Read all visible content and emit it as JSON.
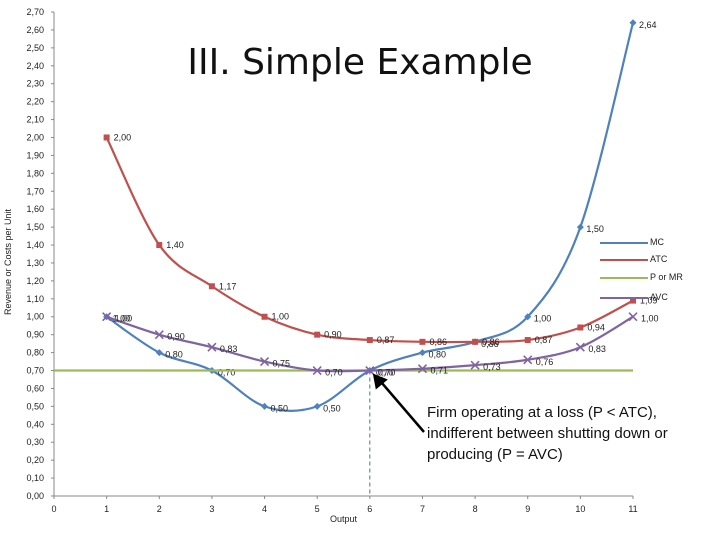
{
  "slide": {
    "title": "III. Simple Example",
    "annotation": "Firm operating at a loss (P < ATC), indifferent between shutting down or producing (P = AVC)"
  },
  "chart_data": {
    "type": "line",
    "xlabel": "Output",
    "ylabel": "Revenue or Costs per Unit",
    "xlim": [
      0,
      11
    ],
    "ylim": [
      0,
      2.7
    ],
    "x_ticks": [
      "0",
      "1",
      "2",
      "3",
      "4",
      "5",
      "6",
      "7",
      "8",
      "9",
      "10",
      "11"
    ],
    "y_ticks": [
      "0,00",
      "0,10",
      "0,20",
      "0,30",
      "0,40",
      "0,50",
      "0,60",
      "0,70",
      "0,80",
      "0,90",
      "1,00",
      "1,10",
      "1,20",
      "1,30",
      "1,40",
      "1,50",
      "1,60",
      "1,70",
      "1,80",
      "1,90",
      "2,00",
      "2,10",
      "2,20",
      "2,30",
      "2,40",
      "2,50",
      "2,60",
      "2,70"
    ],
    "grid": false,
    "legend_position": "right",
    "series": [
      {
        "name": "MC",
        "color": "#4f81bd",
        "marker": "diamond",
        "x": [
          1,
          2,
          3,
          4,
          5,
          6,
          7,
          8,
          9,
          10,
          11
        ],
        "values": [
          1.0,
          0.8,
          0.7,
          0.5,
          0.5,
          0.7,
          0.8,
          0.86,
          1.0,
          1.5,
          2.64
        ],
        "labels": [
          "1,00",
          "0,80",
          "0,70",
          "0,50",
          "0,50",
          "0,70",
          "0,80",
          "0,86",
          "1,00",
          "1,50",
          "2,64"
        ]
      },
      {
        "name": "ATC",
        "color": "#c0504d",
        "marker": "square",
        "x": [
          1,
          2,
          3,
          4,
          5,
          6,
          7,
          8,
          9,
          10,
          11
        ],
        "values": [
          2.0,
          1.4,
          1.17,
          1.0,
          0.9,
          0.87,
          0.86,
          0.86,
          0.87,
          0.94,
          1.09
        ],
        "labels": [
          "2,00",
          "1,40",
          "1,17",
          "1,00",
          "0,90",
          "0,87",
          "0,86",
          "0,86",
          "0,87",
          "0,94",
          "1,09"
        ]
      },
      {
        "name": "P or MR",
        "color": "#9bbb59",
        "marker": "none",
        "x": [
          0,
          11
        ],
        "values": [
          0.7,
          0.7
        ],
        "labels": []
      },
      {
        "name": "AVC",
        "color": "#8064a2",
        "marker": "x",
        "x": [
          1,
          2,
          3,
          4,
          5,
          6,
          7,
          8,
          9,
          10,
          11
        ],
        "values": [
          1.0,
          0.9,
          0.83,
          0.75,
          0.7,
          0.7,
          0.71,
          0.73,
          0.76,
          0.83,
          1.0
        ],
        "labels": [
          "1,00",
          "0,90",
          "0,83",
          "0,75",
          "0,70",
          "0,70",
          "0,71",
          "0,73",
          "0,76",
          "0,83",
          "1,00"
        ]
      }
    ]
  }
}
